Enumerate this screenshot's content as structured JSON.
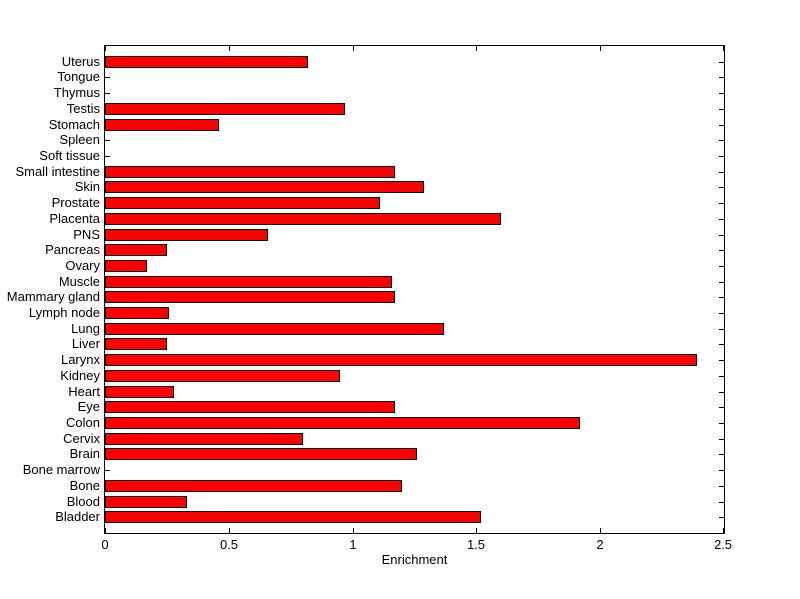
{
  "chart_data": {
    "type": "bar",
    "orientation": "horizontal",
    "title": "",
    "xlabel": "Enrichment",
    "ylabel": "",
    "categories": [
      "Uterus",
      "Tongue",
      "Thymus",
      "Testis",
      "Stomach",
      "Spleen",
      "Soft tissue",
      "Small intestine",
      "Skin",
      "Prostate",
      "Placenta",
      "PNS",
      "Pancreas",
      "Ovary",
      "Muscle",
      "Mammary gland",
      "Lymph node",
      "Lung",
      "Liver",
      "Larynx",
      "Kidney",
      "Heart",
      "Eye",
      "Colon",
      "Cervix",
      "Brain",
      "Bone marrow",
      "Bone",
      "Blood",
      "Bladder"
    ],
    "values": [
      0.82,
      0,
      0,
      0.97,
      0.46,
      0,
      0,
      1.17,
      1.29,
      1.11,
      1.6,
      0.66,
      0.25,
      0.17,
      1.16,
      1.17,
      0.26,
      1.37,
      0.25,
      2.39,
      0.95,
      0.28,
      1.17,
      1.92,
      0.8,
      1.26,
      0,
      1.2,
      0.33,
      1.52
    ],
    "xlim": [
      0,
      2.5
    ],
    "xticks": [
      0,
      0.5,
      1,
      1.5,
      2,
      2.5
    ],
    "xtick_labels": [
      "0",
      "0.5",
      "1",
      "1.5",
      "2",
      "2.5"
    ],
    "grid": false,
    "legend": "none",
    "bar_color": "#ff0000",
    "bar_edge_color": "#000000",
    "axis_color": "#000000",
    "text_color": "#000000",
    "background_color": "#ffffff"
  }
}
